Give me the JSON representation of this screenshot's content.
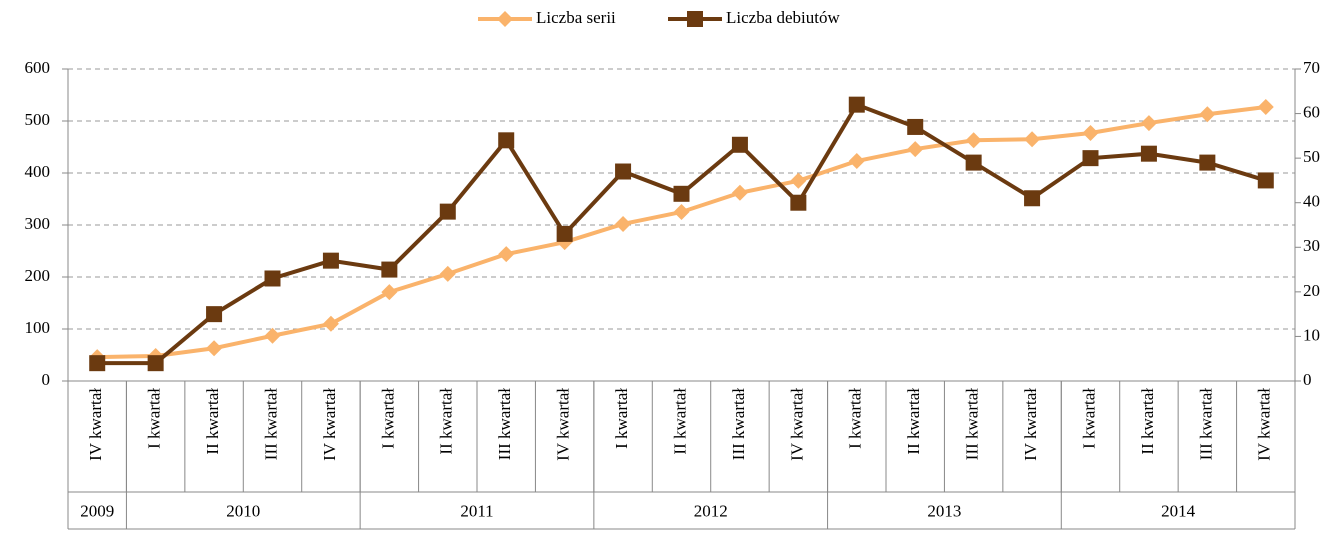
{
  "chart_data": {
    "type": "line",
    "categories": [
      "IV kwartał",
      "I kwartał",
      "II kwartał",
      "III kwartał",
      "IV kwartał",
      "I kwartał",
      "II kwartał",
      "III kwartał",
      "IV kwartał",
      "I kwartał",
      "II kwartał",
      "III kwartał",
      "IV kwartał",
      "I kwartał",
      "II kwartał",
      "III kwartał",
      "IV kwartał",
      "I kwartał",
      "II kwartał",
      "III kwartał",
      "IV kwartał"
    ],
    "category_groups": [
      {
        "label": "2009",
        "span": 1
      },
      {
        "label": "2010",
        "span": 4
      },
      {
        "label": "2011",
        "span": 4
      },
      {
        "label": "2012",
        "span": 4
      },
      {
        "label": "2013",
        "span": 4
      },
      {
        "label": "2014",
        "span": 4
      }
    ],
    "series": [
      {
        "name": "Liczba serii",
        "color": "#fab36b",
        "marker": "diamond",
        "values": [
          46,
          48,
          63,
          87,
          110,
          171,
          206,
          244,
          267,
          302,
          325,
          362,
          385,
          423,
          446,
          463,
          465,
          477,
          496,
          513,
          527
        ]
      },
      {
        "name": "Liczba debiutów",
        "color": "#6b3a10",
        "marker": "square",
        "axis": "y2",
        "values": [
          4,
          4,
          15,
          23,
          27,
          25,
          38,
          54,
          33,
          47,
          42,
          53,
          40,
          62,
          57,
          49,
          41,
          50,
          51,
          49,
          45
        ]
      }
    ],
    "ylim": [
      0,
      600
    ],
    "yticks": [
      0,
      100,
      200,
      300,
      400,
      500,
      600
    ],
    "y2lim": [
      0,
      70
    ],
    "y2ticks": [
      0,
      10,
      20,
      30,
      40,
      50,
      60,
      70
    ],
    "grid": true,
    "legend": "top"
  }
}
